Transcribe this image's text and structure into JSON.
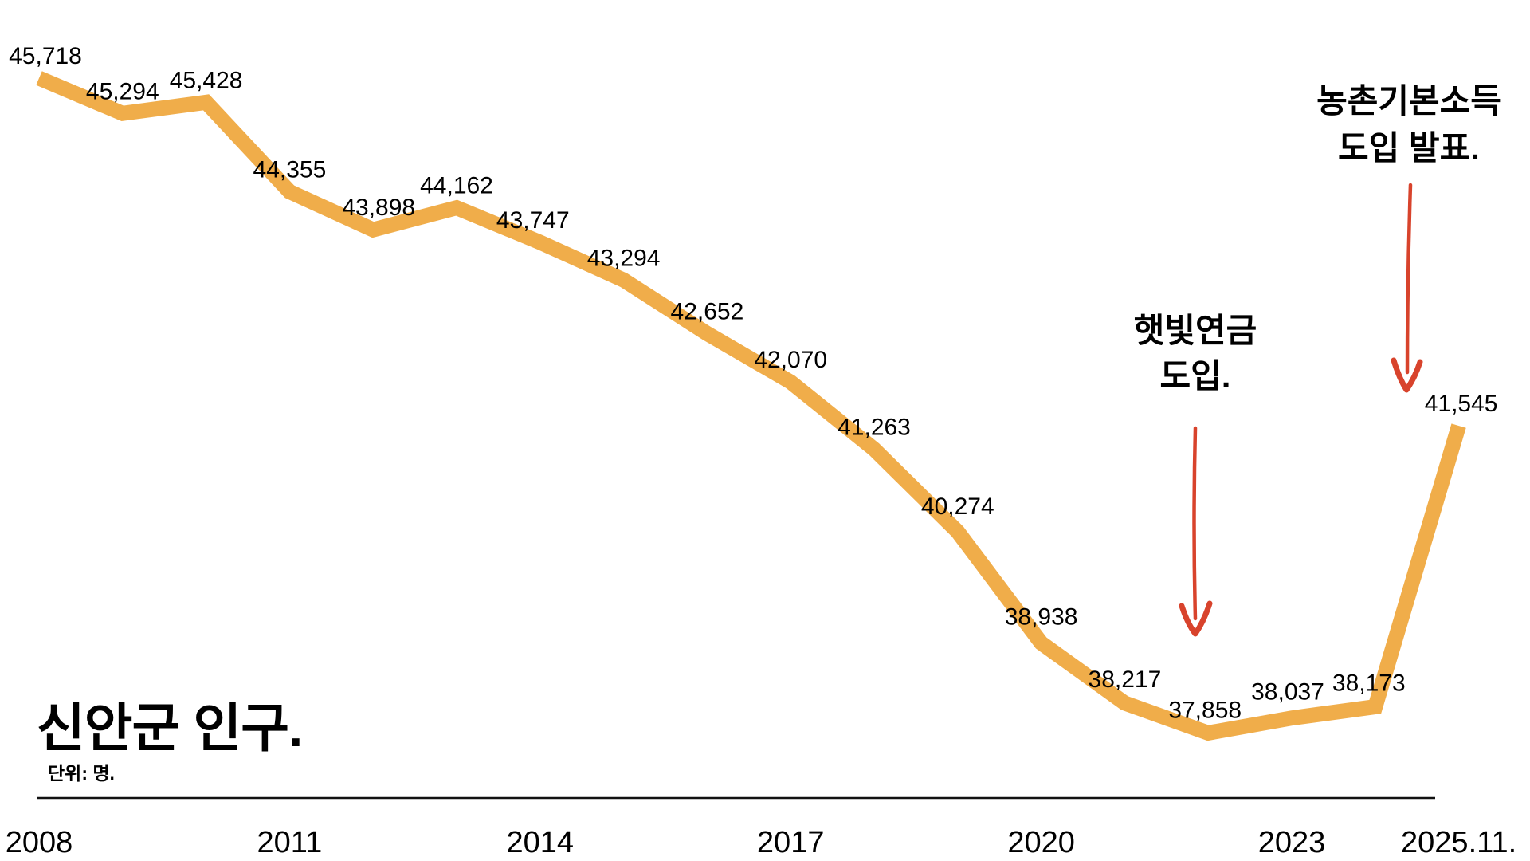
{
  "colors": {
    "background": "#FFFFFF",
    "line": "#F0AD4A",
    "arrow": "#D8432C",
    "text": "#000000",
    "axis": "#111111"
  },
  "chart_data": {
    "type": "line",
    "title": "신안군 인구.",
    "unit": "단위: 명.",
    "x": [
      "2008",
      "2009",
      "2010",
      "2011",
      "2012",
      "2013",
      "2014",
      "2015",
      "2016",
      "2017",
      "2018",
      "2019",
      "2020",
      "2021",
      "2022",
      "2023",
      "2024",
      "2025.11"
    ],
    "values": [
      45718,
      45294,
      45428,
      44355,
      43898,
      44162,
      43747,
      43294,
      42652,
      42070,
      41263,
      40274,
      38938,
      38217,
      37858,
      38037,
      38173,
      41545
    ],
    "value_labels_shown": true,
    "x_ticks": [
      {
        "label": "2008",
        "index": 0
      },
      {
        "label": "2011",
        "index": 3
      },
      {
        "label": "2014",
        "index": 6
      },
      {
        "label": "2017",
        "index": 9
      },
      {
        "label": "2020",
        "index": 12
      },
      {
        "label": "2023",
        "index": 15
      },
      {
        "label": "2025.11.",
        "index": 17
      }
    ],
    "ylim": [
      37500,
      46200
    ],
    "grid": false,
    "legend": false,
    "annotations": [
      {
        "line1": "햇빛연금",
        "line2": "도입.",
        "arrow": "down"
      },
      {
        "line1": "농촌기본소득",
        "line2": "도입 발표.",
        "arrow": "down"
      }
    ]
  }
}
